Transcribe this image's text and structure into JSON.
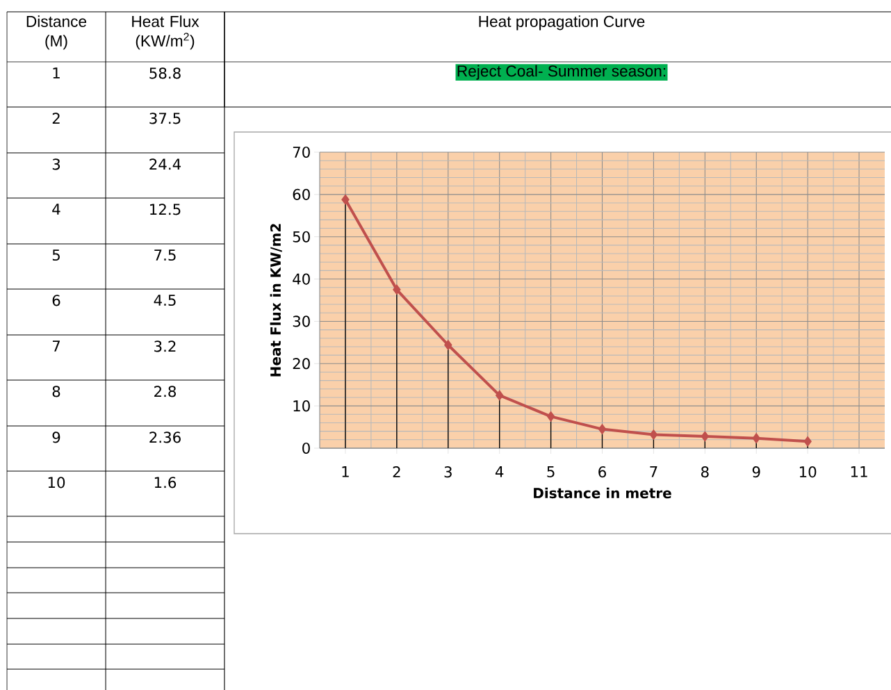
{
  "chart_data": {
    "type": "line",
    "title": "Heat propagation Curve",
    "subtitle": "Reject Coal- Summer season:",
    "xlabel": "Distance in metre",
    "ylabel": "Heat Flux in KW/m2",
    "annotations": [
      "Distance (M)",
      "Heat Flux (KW/m$^{2}$)",
      "1",
      "58.8",
      "2",
      "37.5",
      "3",
      "24.4",
      "4",
      "12.5",
      "5",
      "7.5",
      "6",
      "4.5",
      "7",
      "3.2",
      "8",
      "2.8",
      "9",
      "2.36",
      "10",
      "1.6"
    ],
    "x": [
      1,
      2,
      3,
      4,
      5,
      6,
      7,
      8,
      9,
      10
    ],
    "series": [
      {
        "marker": "none",
        "color": "#c0504d",
        "values": [
          58.8,
          37.5,
          24.4,
          12.5,
          7.5,
          4.5,
          3.2,
          2.8,
          2.36,
          1.6
        ]
      },
      {
        "type": "lollipop",
        "color": "#c0504d",
        "values": [
          58.8,
          37.5,
          24.4,
          12.5,
          7.5,
          4.5,
          3.2,
          2.8,
          2.36,
          1.6
        ]
      }
    ],
    "xlim": [
      0.5,
      11.5
    ],
    "xticks": [
      1,
      2,
      3,
      4,
      5,
      6,
      7,
      8,
      9,
      10,
      11
    ],
    "ylim": [
      0,
      70
    ],
    "yticks": [
      0,
      10,
      20,
      30,
      40,
      50,
      60,
      70
    ],
    "grid": true,
    "marker": "diamond",
    "line_style": "solid"
  }
}
